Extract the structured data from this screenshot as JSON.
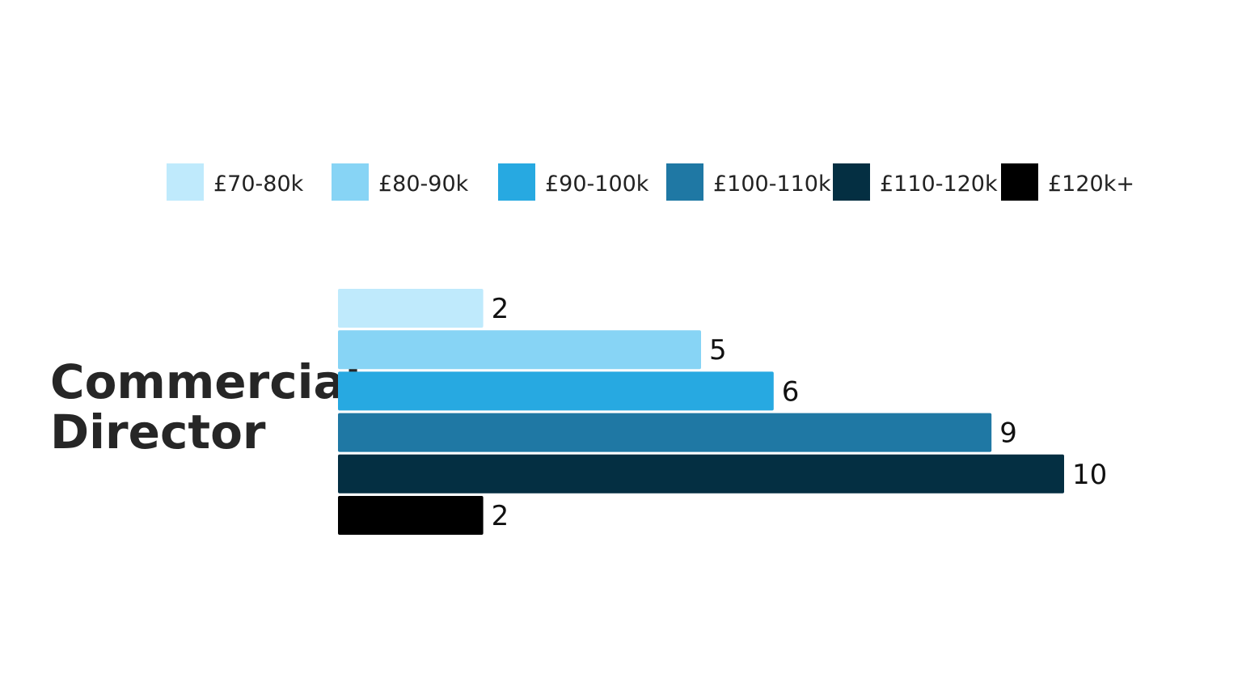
{
  "chart_data": {
    "type": "bar",
    "orientation": "horizontal",
    "categories": [
      "Commercial Director"
    ],
    "category_label_lines": [
      "Commercial",
      "Director"
    ],
    "series": [
      {
        "name": "£70-80k",
        "values": [
          2
        ],
        "color": "#bfeafc"
      },
      {
        "name": "£80-90k",
        "values": [
          5
        ],
        "color": "#87d4f5"
      },
      {
        "name": "£90-100k",
        "values": [
          6
        ],
        "color": "#27a9e1"
      },
      {
        "name": "£100-110k",
        "values": [
          9
        ],
        "color": "#1f78a4"
      },
      {
        "name": "£110-120k",
        "values": [
          10
        ],
        "color": "#042f42"
      },
      {
        "name": "£120k+",
        "values": [
          2
        ],
        "color": "#000000"
      }
    ],
    "xlim": [
      0,
      10
    ],
    "legend_position": "top",
    "grid": false,
    "data_labels": true
  }
}
